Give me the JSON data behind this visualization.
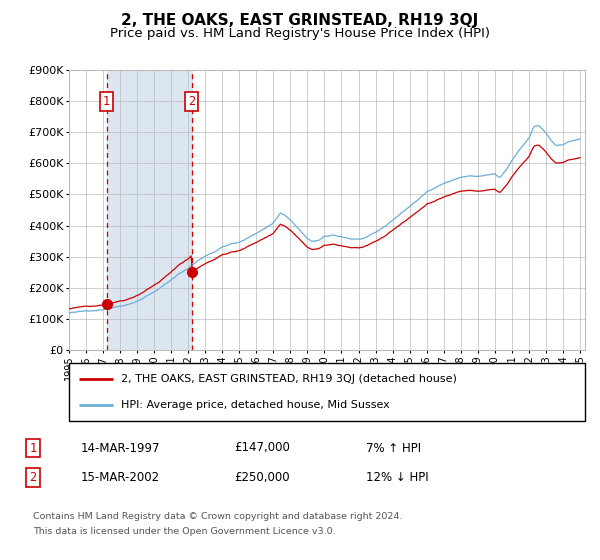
{
  "title": "2, THE OAKS, EAST GRINSTEAD, RH19 3QJ",
  "subtitle": "Price paid vs. HM Land Registry's House Price Index (HPI)",
  "ylim": [
    0,
    900000
  ],
  "yticks": [
    0,
    100000,
    200000,
    300000,
    400000,
    500000,
    600000,
    700000,
    800000,
    900000
  ],
  "ytick_labels": [
    "£0",
    "£100K",
    "£200K",
    "£300K",
    "£400K",
    "£500K",
    "£600K",
    "£700K",
    "£800K",
    "£900K"
  ],
  "sale1_date": 1997.21,
  "sale1_price": 147000,
  "sale1_label": "1",
  "sale2_date": 2002.21,
  "sale2_price": 250000,
  "sale2_label": "2",
  "hpi_color": "#6baed6",
  "price_color": "#cc0000",
  "shade_color": "#dce6f1",
  "legend_line1": "2, THE OAKS, EAST GRINSTEAD, RH19 3QJ (detached house)",
  "legend_line2": "HPI: Average price, detached house, Mid Sussex",
  "table_row1": [
    "1",
    "14-MAR-1997",
    "£147,000",
    "7% ↑ HPI"
  ],
  "table_row2": [
    "2",
    "15-MAR-2002",
    "£250,000",
    "12% ↓ HPI"
  ],
  "footnote1": "Contains HM Land Registry data © Crown copyright and database right 2024.",
  "footnote2": "This data is licensed under the Open Government Licence v3.0.",
  "background_color": "#ffffff",
  "grid_color": "#bbbbbb",
  "title_fontsize": 11,
  "subtitle_fontsize": 9.5
}
